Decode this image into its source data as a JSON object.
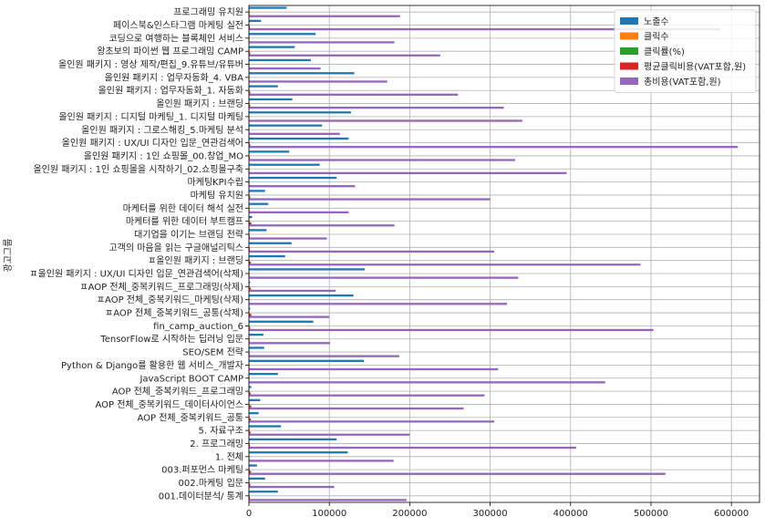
{
  "chart_data": {
    "type": "bar",
    "orientation": "horizontal",
    "ylabel": "광고그룹",
    "xlabel": "",
    "xlim": [
      0,
      635000
    ],
    "xticks": [
      0,
      100000,
      200000,
      300000,
      400000,
      500000,
      600000
    ],
    "xtick_labels": [
      "0",
      "100000",
      "200000",
      "300000",
      "400000",
      "500000",
      "600000"
    ],
    "grid": true,
    "legend_position": "top-right",
    "categories": [
      "001.데이터분석/ 통계",
      "002.마케팅 입문",
      "003.퍼포먼스 마케팅",
      "1. 전체",
      "2. 프로그래밍",
      "5. 자료구조",
      "AOP 전체_중복키워드_공통",
      "AOP 전체_중복키워드_데이터사이언스",
      "AOP 전체_중복키워드_프로그래밍",
      "JavaScript BOOT CAMP",
      "Python & Django를 활용한 웹 서비스_개발자",
      "SEO/SEM 전략",
      "TensorFlow로 시작하는 딥러닝 입문",
      "fin_camp_auction_6",
      "ㅍAOP 전체_중복키워드_공통(삭제)",
      "ㅍAOP 전체_중복키워드_마케팅(삭제)",
      "ㅍAOP 전체_중복키워드_프로그래밍(삭제)",
      "ㅍ올인원 패키지 : UX/UI 디자인 입문_연관검색어(삭제)",
      "ㅍ올인원 패키지 : 브랜딩",
      "고객의 마음을 읽는 구글애널리틱스",
      "대기업을 이기는 브랜딩 전략",
      "마케터를 위한 데이터 부트캠프",
      "마케터를 위한 데이터 해석 실전",
      "마케팅 유치원",
      "마케팅KPI수립",
      "올인원 패키지 : 1인 쇼핑몰을 시작하기_02.쇼핑몰구축",
      "올인원 패키지 : 1인 쇼핑몰_00.창업_MO",
      "올인원 패키지 : UX/UI 디자인 입문_연관검색어",
      "올인원 패키지 : 그로스해킹_5.마케팅 분석",
      "올인원 패키지 : 디지털 마케팅_1. 디지털 마케팅",
      "올인원 패키지 : 브랜딩",
      "올인원 패키지 : 업무자동화_1. 자동화",
      "올인원 패키지 : 업무자동화_4. VBA",
      "올인원 패키지 : 영상 제작/편집_9.유튜브/유튜버",
      "왕초보의 파이썬 웹 프로그래밍 CAMP",
      "코딩으로 여행하는 블록체인 서비스",
      "페이스북&인스타그램 마케팅 실전",
      "프로그래밍 유치원"
    ],
    "series": [
      {
        "name": "노출수",
        "color": "#1f77b4",
        "values": [
          36000,
          20000,
          10000,
          123000,
          109000,
          40000,
          12000,
          14000,
          3000,
          36000,
          143000,
          19000,
          18000,
          80000,
          1500,
          130000,
          1500,
          144000,
          45000,
          53000,
          22000,
          4000,
          24000,
          20000,
          109000,
          88000,
          50000,
          124000,
          91000,
          127000,
          54000,
          36000,
          131000,
          77000,
          57000,
          83000,
          15000,
          47000
        ]
      },
      {
        "name": "클릭수",
        "color": "#ff7f0e",
        "values": [
          150,
          60,
          200,
          400,
          300,
          100,
          120,
          150,
          60,
          700,
          600,
          200,
          100,
          300,
          30,
          600,
          30,
          400,
          200,
          250,
          100,
          60,
          150,
          200,
          300,
          600,
          300,
          400,
          300,
          600,
          200,
          150,
          300,
          300,
          300,
          400,
          200,
          200
        ]
      },
      {
        "name": "클릭률(%)",
        "color": "#2ca02c",
        "values": [
          0.4,
          0.3,
          2.0,
          0.3,
          0.3,
          0.3,
          1.0,
          1.1,
          2.0,
          1.9,
          0.4,
          1.1,
          0.6,
          0.4,
          2.0,
          0.5,
          2.0,
          0.3,
          0.4,
          0.5,
          0.5,
          1.5,
          0.6,
          1.0,
          0.3,
          0.7,
          0.6,
          0.3,
          0.3,
          0.5,
          0.4,
          0.4,
          0.2,
          0.4,
          0.5,
          0.5,
          1.3,
          0.4
        ]
      },
      {
        "name": "평균클릭비용(VAT포함,원)",
        "color": "#d62728",
        "values": [
          1300,
          1800,
          2600,
          450,
          1300,
          2000,
          2500,
          3000,
          2000,
          600,
          500,
          900,
          1000,
          1600,
          3000,
          500,
          2500,
          800,
          2400,
          1200,
          1000,
          3000,
          800,
          1500,
          400,
          600,
          1100,
          1500,
          600,
          550,
          1500,
          1700,
          550,
          300,
          1600,
          450,
          1200,
          900
        ]
      },
      {
        "name": "총비용(VAT포함,원)",
        "color": "#9467bd",
        "values": [
          196000,
          106000,
          518000,
          180000,
          407000,
          200000,
          305000,
          267000,
          293000,
          443000,
          310000,
          187000,
          101000,
          503000,
          100000,
          321000,
          108000,
          335000,
          487000,
          305000,
          97000,
          181000,
          124000,
          300000,
          132000,
          395000,
          331000,
          608000,
          113000,
          340000,
          317000,
          260000,
          172000,
          89000,
          238000,
          181000,
          586000,
          188000
        ]
      }
    ]
  }
}
